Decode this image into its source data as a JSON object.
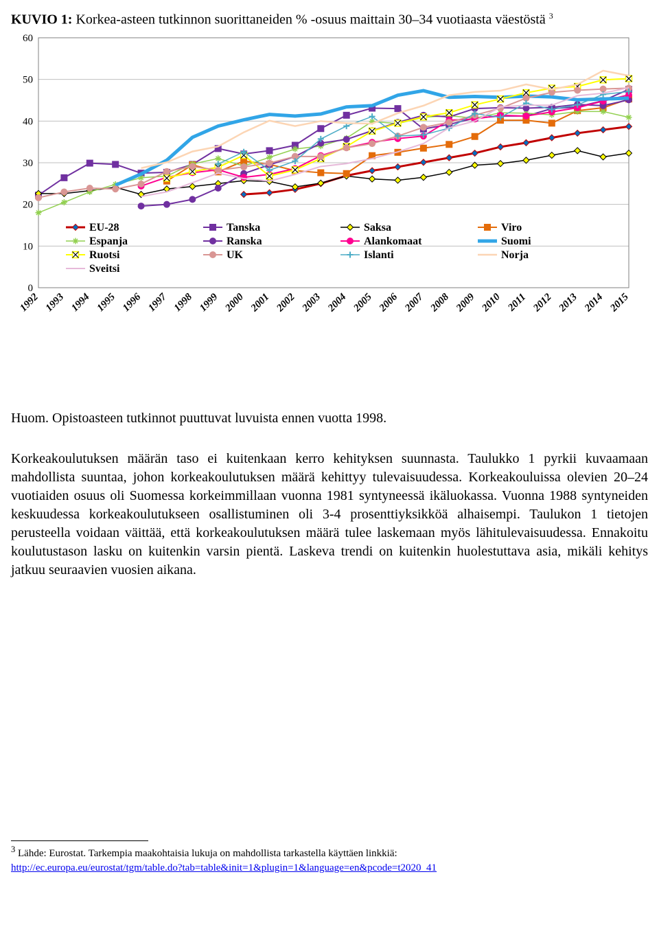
{
  "title_prefix": "KUVIO 1: ",
  "title_rest": "Korkea-asteen tutkinnon suorittaneiden % -osuus maittain 30–34 vuotiaasta väestöstä ",
  "title_sup": "3",
  "chart": {
    "type": "line",
    "background_color": "#ffffff",
    "grid_color": "#bfbfbf",
    "axis_color": "#808080",
    "text_color": "#000000",
    "font_family": "Times New Roman",
    "label_fontsize": 16,
    "tick_fontsize": 15,
    "ylim": [
      0,
      60
    ],
    "ytick_step": 10,
    "years": [
      1992,
      1993,
      1994,
      1995,
      1996,
      1997,
      1998,
      1999,
      2000,
      2001,
      2002,
      2003,
      2004,
      2005,
      2006,
      2007,
      2008,
      2009,
      2010,
      2011,
      2012,
      2013,
      2014,
      2015
    ],
    "series": [
      {
        "name": "EU-28",
        "color": "#c00000",
        "marker": "diamond",
        "marker_fill": "#0070c0",
        "width": 3,
        "values": [
          null,
          null,
          null,
          null,
          null,
          null,
          null,
          null,
          22.4,
          22.8,
          23.6,
          25.0,
          26.9,
          28.1,
          29.0,
          30.1,
          31.2,
          32.3,
          33.8,
          34.8,
          36.0,
          37.1,
          37.9,
          38.7
        ]
      },
      {
        "name": "Tanska",
        "color": "#7030a0",
        "marker": "square",
        "marker_fill": "#7030a0",
        "width": 2,
        "values": [
          22.2,
          26.4,
          29.9,
          29.6,
          27.5,
          27.7,
          29.6,
          33.4,
          32.1,
          32.9,
          34.2,
          38.2,
          41.4,
          43.1,
          43.0,
          38.1,
          39.2,
          40.7,
          41.2,
          41.2,
          43.0,
          43.4,
          44.9,
          47.6
        ]
      },
      {
        "name": "Saksa",
        "color": "#000000",
        "marker": "diamond",
        "marker_fill": "#ffff00",
        "width": 1.5,
        "values": [
          22.6,
          22.6,
          23.3,
          24.1,
          22.4,
          23.7,
          24.3,
          25.0,
          25.7,
          25.5,
          24.2,
          25.1,
          26.8,
          26.1,
          25.8,
          26.5,
          27.7,
          29.4,
          29.8,
          30.6,
          31.8,
          32.9,
          31.4,
          32.3
        ]
      },
      {
        "name": "Viro",
        "color": "#e46c0a",
        "marker": "square",
        "marker_fill": "#e46c0a",
        "width": 2,
        "values": [
          null,
          null,
          null,
          null,
          null,
          25.6,
          29.5,
          27.8,
          30.4,
          29.6,
          28.1,
          27.6,
          27.4,
          31.7,
          32.5,
          33.5,
          34.4,
          36.3,
          40.2,
          40.2,
          39.5,
          42.5,
          43.2,
          45.3
        ]
      },
      {
        "name": "Espanja",
        "color": "#92d050",
        "marker": "asterisk",
        "marker_fill": "#92d050",
        "width": 1.5,
        "values": [
          18.0,
          20.5,
          23.0,
          24.8,
          26.4,
          26.8,
          29.7,
          31.0,
          29.2,
          31.3,
          33.3,
          34.0,
          35.9,
          39.9,
          39.4,
          40.9,
          41.3,
          40.7,
          42.0,
          41.9,
          41.5,
          42.3,
          42.3,
          40.9
        ]
      },
      {
        "name": "Ranska",
        "color": "#7030a0",
        "marker": "circle",
        "marker_fill": "#7030a0",
        "width": 2,
        "values": [
          null,
          null,
          null,
          null,
          19.6,
          20.0,
          21.2,
          23.9,
          27.4,
          29.5,
          31.5,
          34.7,
          35.6,
          37.7,
          39.7,
          41.4,
          41.0,
          43.0,
          43.2,
          43.1,
          43.3,
          44.0,
          43.7,
          45.1
        ]
      },
      {
        "name": "Alankomaat",
        "color": "#ff0090",
        "marker": "circle",
        "marker_fill": "#ff0090",
        "width": 2,
        "values": [
          null,
          null,
          null,
          null,
          24.4,
          26.5,
          27.6,
          28.3,
          26.5,
          27.2,
          28.6,
          31.7,
          33.6,
          34.9,
          35.8,
          36.4,
          40.2,
          40.5,
          41.4,
          41.2,
          42.2,
          43.2,
          44.8,
          46.3
        ]
      },
      {
        "name": "Suomi",
        "color": "#31a5e7",
        "marker": "none",
        "marker_fill": "#31a5e7",
        "width": 5,
        "values": [
          null,
          null,
          null,
          24.6,
          27.3,
          30.6,
          36.1,
          38.8,
          40.3,
          41.6,
          41.2,
          41.7,
          43.4,
          43.7,
          46.2,
          47.3,
          45.7,
          45.9,
          45.7,
          46.0,
          45.8,
          45.1,
          45.3,
          45.5
        ]
      },
      {
        "name": "Ruotsi",
        "color": "#ffff00",
        "marker": "squareX",
        "marker_fill": "#ffffff",
        "width": 2,
        "values": [
          null,
          null,
          null,
          null,
          null,
          26.3,
          27.9,
          28.9,
          31.8,
          26.8,
          28.3,
          31.0,
          33.9,
          37.6,
          39.5,
          41.0,
          42.0,
          43.9,
          45.3,
          46.8,
          47.9,
          48.3,
          49.9,
          50.2
        ]
      },
      {
        "name": "UK",
        "color": "#d99694",
        "marker": "circle",
        "marker_fill": "#d99694",
        "width": 2,
        "values": [
          21.6,
          23.0,
          23.9,
          23.7,
          24.9,
          27.9,
          29.1,
          28.2,
          29.0,
          29.9,
          31.5,
          31.5,
          33.6,
          34.6,
          36.4,
          38.5,
          39.7,
          41.4,
          43.1,
          45.5,
          46.9,
          47.4,
          47.7,
          47.9
        ]
      },
      {
        "name": "Islanti",
        "color": "#4bacc6",
        "marker": "plus",
        "marker_fill": "#4bacc6",
        "width": 1.5,
        "values": [
          null,
          null,
          null,
          null,
          null,
          null,
          null,
          29.7,
          32.6,
          28.2,
          30.4,
          35.7,
          38.8,
          41.1,
          36.4,
          36.7,
          38.3,
          41.8,
          40.9,
          44.3,
          42.8,
          43.9,
          46.4,
          47.1
        ]
      },
      {
        "name": "Norja",
        "color": "#fcd5b4",
        "marker": "none",
        "marker_fill": "#fcd5b4",
        "width": 2.5,
        "values": [
          null,
          null,
          null,
          null,
          28.7,
          30.1,
          32.7,
          33.9,
          37.3,
          40.1,
          38.8,
          40.0,
          39.5,
          39.4,
          41.9,
          43.7,
          46.2,
          47.0,
          47.3,
          48.8,
          47.6,
          48.8,
          52.1,
          50.9
        ]
      },
      {
        "name": "Sveitsi",
        "color": "#e6b9d9",
        "marker": "none",
        "marker_fill": "#e6b9d9",
        "width": 2,
        "values": [
          null,
          null,
          null,
          null,
          21.9,
          23.0,
          25.2,
          27.5,
          26.2,
          25.6,
          27.2,
          29.1,
          29.8,
          31.0,
          32.6,
          34.6,
          38.4,
          40.0,
          43.4,
          43.8,
          43.8,
          46.1,
          46.7,
          48.0
        ]
      }
    ],
    "legend_rows": [
      [
        "EU-28",
        "Tanska",
        "Saksa",
        "Viro"
      ],
      [
        "Espanja",
        "Ranska",
        "Alankomaat",
        "Suomi"
      ],
      [
        "Ruotsi",
        "UK",
        "Islanti",
        "Norja"
      ],
      [
        "Sveitsi",
        "",
        "",
        ""
      ]
    ]
  },
  "note": "Huom. Opistoasteen tutkinnot puuttuvat luvuista ennen vuotta 1998.",
  "body": "Korkeakoulutuksen määrän taso ei kuitenkaan kerro kehityksen suunnasta. Taulukko 1 pyrkii kuvaamaan mahdollista suuntaa, johon korkeakoulutuksen määrä kehittyy tulevaisuudessa. Korkeakouluissa olevien 20–24 vuotiaiden osuus oli Suomessa korkeimmillaan vuonna 1981 syntyneessä ikäluokassa. Vuonna 1988 syntyneiden keskuudessa korkeakoulutukseen osallistuminen oli 3-4 prosenttiyksikköä alhaisempi. Taulukon 1 tietojen perusteella voidaan väittää, että korkeakoulutuksen määrä tulee laskemaan myös lähitulevaisuudessa. Ennakoitu koulutustason lasku on kuitenkin varsin pientä. Laskeva trendi on kuitenkin huolestuttava asia, mikäli kehitys jatkuu seuraavien vuosien aikana.",
  "footnote_label": "3",
  "footnote_text": " Lähde: Eurostat. Tarkempia maakohtaisia lukuja on mahdollista tarkastella käyttäen linkkiä: ",
  "footnote_link": "http://ec.europa.eu/eurostat/tgm/table.do?tab=table&init=1&plugin=1&language=en&pcode=t2020_41"
}
